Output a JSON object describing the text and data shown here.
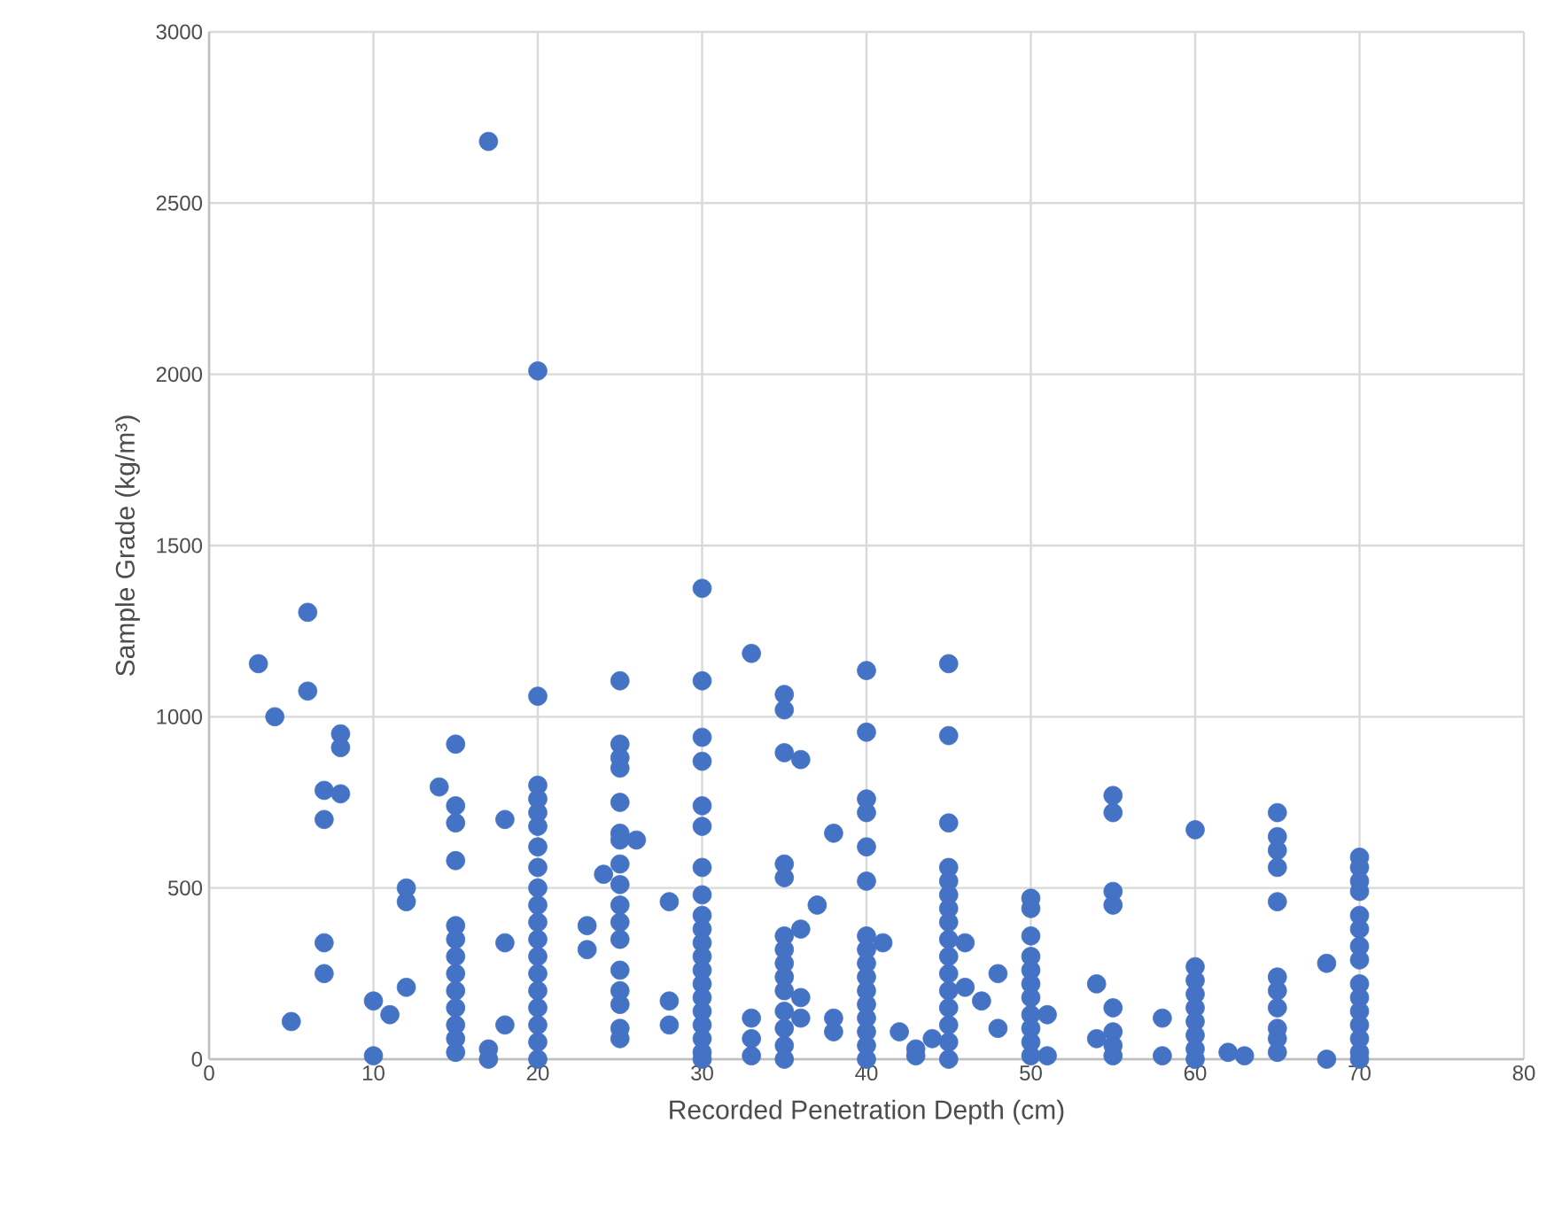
{
  "chart_data": {
    "type": "scatter",
    "xlabel": "Recorded Penetration Depth (cm)",
    "ylabel": "Sample Grade (kg/m³)",
    "xlim": [
      0,
      80
    ],
    "ylim": [
      0,
      3000
    ],
    "xticks": [
      0,
      10,
      20,
      30,
      40,
      50,
      60,
      70,
      80
    ],
    "yticks": [
      0,
      500,
      1000,
      1500,
      2000,
      2500,
      3000
    ],
    "grid": true,
    "marker": "circle",
    "series": [
      {
        "color": "#4472c4",
        "x": [
          3,
          4,
          5,
          6,
          6,
          7,
          7,
          7,
          7,
          8,
          8,
          8,
          10,
          10,
          11,
          12,
          12,
          12,
          14,
          15,
          15,
          15,
          15,
          15,
          15,
          15,
          15,
          15,
          15,
          15,
          15,
          15,
          17,
          17,
          17,
          18,
          18,
          18,
          20,
          20,
          20,
          20,
          20,
          20,
          20,
          20,
          20,
          20,
          20,
          20,
          20,
          20,
          20,
          20,
          20,
          20,
          20,
          23,
          23,
          24,
          25,
          25,
          25,
          25,
          25,
          25,
          25,
          25,
          25,
          25,
          25,
          25,
          25,
          25,
          25,
          25,
          25,
          26,
          28,
          28,
          28,
          30,
          30,
          30,
          30,
          30,
          30,
          30,
          30,
          30,
          30,
          30,
          30,
          30,
          30,
          30,
          30,
          30,
          30,
          30,
          30,
          33,
          33,
          33,
          33,
          35,
          35,
          35,
          35,
          35,
          35,
          35,
          35,
          35,
          35,
          35,
          35,
          35,
          35,
          36,
          36,
          36,
          36,
          37,
          38,
          38,
          38,
          40,
          40,
          40,
          40,
          40,
          40,
          40,
          40,
          40,
          40,
          40,
          40,
          40,
          40,
          40,
          40,
          41,
          42,
          43,
          43,
          44,
          45,
          45,
          45,
          45,
          45,
          45,
          45,
          45,
          45,
          45,
          45,
          45,
          45,
          45,
          45,
          45,
          46,
          46,
          47,
          48,
          48,
          50,
          50,
          50,
          50,
          50,
          50,
          50,
          50,
          50,
          50,
          50,
          51,
          51,
          54,
          54,
          55,
          55,
          55,
          55,
          55,
          55,
          55,
          55,
          58,
          58,
          60,
          60,
          60,
          60,
          60,
          60,
          60,
          60,
          60,
          62,
          63,
          65,
          65,
          65,
          65,
          65,
          65,
          65,
          65,
          65,
          65,
          65,
          68,
          68,
          70,
          70,
          70,
          70,
          70,
          70,
          70,
          70,
          70,
          70,
          70,
          70,
          70,
          70,
          70
        ],
        "values": [
          1155,
          1000,
          110,
          1305,
          1075,
          785,
          700,
          340,
          250,
          950,
          910,
          775,
          170,
          10,
          130,
          500,
          460,
          210,
          795,
          920,
          740,
          690,
          580,
          390,
          350,
          300,
          250,
          200,
          150,
          100,
          60,
          20,
          2680,
          30,
          0,
          700,
          340,
          100,
          2010,
          1060,
          800,
          760,
          720,
          680,
          620,
          560,
          500,
          450,
          400,
          350,
          300,
          250,
          200,
          150,
          100,
          50,
          0,
          390,
          320,
          540,
          1105,
          920,
          880,
          850,
          750,
          660,
          640,
          570,
          510,
          450,
          400,
          350,
          260,
          200,
          160,
          90,
          60,
          640,
          460,
          170,
          100,
          1375,
          1105,
          940,
          870,
          740,
          680,
          560,
          480,
          420,
          380,
          340,
          300,
          260,
          220,
          180,
          140,
          100,
          60,
          20,
          0,
          1185,
          120,
          60,
          10,
          1065,
          1020,
          895,
          570,
          530,
          360,
          320,
          280,
          240,
          200,
          140,
          90,
          40,
          0,
          875,
          380,
          180,
          120,
          450,
          660,
          120,
          80,
          1135,
          955,
          760,
          720,
          620,
          520,
          360,
          320,
          280,
          240,
          200,
          160,
          120,
          80,
          40,
          0,
          340,
          80,
          30,
          10,
          60,
          1155,
          945,
          690,
          560,
          520,
          480,
          440,
          400,
          350,
          300,
          250,
          200,
          150,
          100,
          50,
          0,
          340,
          210,
          170,
          250,
          90,
          470,
          440,
          360,
          300,
          260,
          220,
          180,
          130,
          90,
          50,
          10,
          130,
          10,
          220,
          60,
          770,
          720,
          490,
          450,
          150,
          80,
          40,
          10,
          120,
          10,
          670,
          270,
          230,
          190,
          150,
          110,
          70,
          30,
          0,
          20,
          10,
          720,
          650,
          610,
          560,
          460,
          240,
          200,
          150,
          90,
          60,
          20,
          280,
          0,
          590,
          560,
          520,
          490,
          420,
          380,
          330,
          290,
          220,
          180,
          140,
          100,
          60,
          20,
          0
        ]
      }
    ]
  }
}
